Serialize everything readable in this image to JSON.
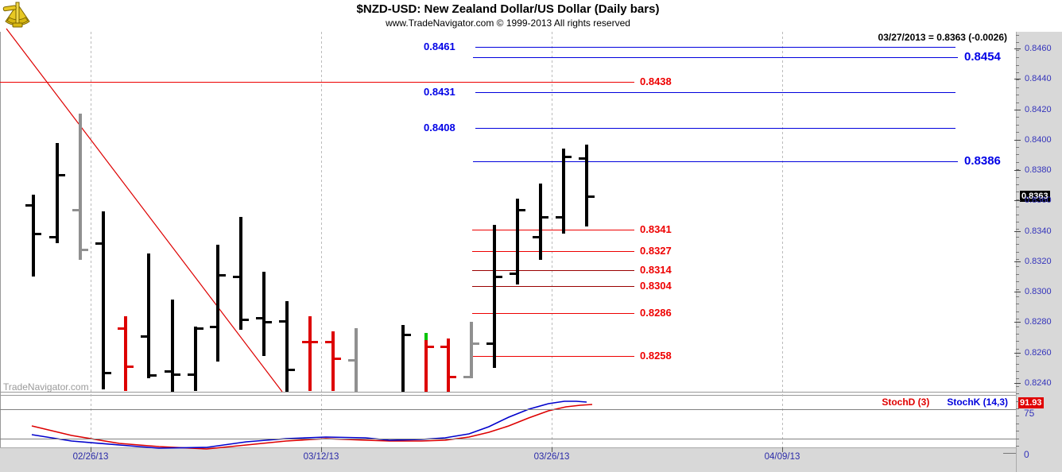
{
  "header": {
    "title": "$NZD-USD:  New Zealand Dollar/US Dollar  (Daily bars)",
    "subtitle": "www.TradeNavigator.com © 1999-2013 All rights reserved",
    "quote": "03/27/2013 = 0.8363 (-0.0026)",
    "watermark": "TradeNavigator.com"
  },
  "logo": {
    "name": "trade-navigator-sextant-logo",
    "color": "#d8b812"
  },
  "price_badge": "0.8363",
  "stoch_badge": "91.93",
  "stoch_labels": {
    "d": "StochD (3)",
    "k": "StochK (14,3)",
    "level75": "75",
    "level0": "0"
  },
  "colors": {
    "blue_line": "#0000dd",
    "red_line": "#ee0000",
    "dark_red_line": "#9a0000",
    "black_bar": "#000000",
    "red_bar": "#dd0000",
    "gray_bar": "#909090",
    "green_cap": "#00c400",
    "axis_text": "#3434bb",
    "stoch_k": "#0000cc",
    "stoch_d": "#dd0000"
  },
  "chart_data": {
    "type": "ohlc",
    "title": "$NZD-USD:  New Zealand Dollar/US Dollar  (Daily bars)",
    "price_axis": {
      "min": 0.824,
      "max": 0.846,
      "tick_step": 0.002,
      "minor_step": 0.0005,
      "labels": [
        "0.8460",
        "0.8440",
        "0.8420",
        "0.8400",
        "0.8380",
        "0.8360",
        "0.8340",
        "0.8320",
        "0.8300",
        "0.8280",
        "0.8260",
        "0.8240"
      ],
      "last_price": 0.8363
    },
    "x_axis": {
      "dates": [
        {
          "label": "02/26/13",
          "x": 114
        },
        {
          "label": "03/12/13",
          "x": 404
        },
        {
          "label": "03/26/13",
          "x": 694
        },
        {
          "label": "04/09/13",
          "x": 984
        }
      ]
    },
    "bars": [
      {
        "x": 42,
        "o": 0.8357,
        "h": 0.8364,
        "l": 0.831,
        "c": 0.8338,
        "color": "black"
      },
      {
        "x": 72,
        "o": 0.8336,
        "h": 0.8398,
        "l": 0.8332,
        "c": 0.8377,
        "color": "black"
      },
      {
        "x": 101,
        "o": 0.8354,
        "h": 0.8417,
        "l": 0.8321,
        "c": 0.8328,
        "color": "gray"
      },
      {
        "x": 130,
        "o": 0.8332,
        "h": 0.8353,
        "l": 0.8236,
        "c": 0.8247,
        "color": "black"
      },
      {
        "x": 158,
        "o": 0.8276,
        "h": 0.8284,
        "l": 0.8235,
        "c": 0.8251,
        "color": "red"
      },
      {
        "x": 187,
        "o": 0.8271,
        "h": 0.8325,
        "l": 0.8243,
        "c": 0.8245,
        "color": "black"
      },
      {
        "x": 217,
        "o": 0.8248,
        "h": 0.8295,
        "l": 0.8234,
        "c": 0.8246,
        "color": "black"
      },
      {
        "x": 246,
        "o": 0.8246,
        "h": 0.8277,
        "l": 0.8235,
        "c": 0.8276,
        "color": "black"
      },
      {
        "x": 274,
        "o": 0.8277,
        "h": 0.8331,
        "l": 0.8254,
        "c": 0.8311,
        "color": "black"
      },
      {
        "x": 303,
        "o": 0.831,
        "h": 0.8349,
        "l": 0.8275,
        "c": 0.8282,
        "color": "black"
      },
      {
        "x": 332,
        "o": 0.8283,
        "h": 0.8313,
        "l": 0.8258,
        "c": 0.828,
        "color": "black"
      },
      {
        "x": 361,
        "o": 0.8281,
        "h": 0.8294,
        "l": 0.8234,
        "c": 0.8249,
        "color": "black"
      },
      {
        "x": 390,
        "o": 0.8267,
        "h": 0.8284,
        "l": 0.8235,
        "c": 0.8267,
        "color": "red"
      },
      {
        "x": 419,
        "o": 0.8267,
        "h": 0.8274,
        "l": 0.8235,
        "c": 0.8256,
        "color": "red"
      },
      {
        "x": 448,
        "o": 0.8255,
        "h": 0.8276,
        "l": 0.8234,
        "c": null,
        "color": "gray"
      },
      {
        "x": 507,
        "o": null,
        "h": 0.8278,
        "l": 0.8234,
        "c": 0.8272,
        "color": "black"
      },
      {
        "x": 536,
        "o": null,
        "h": 0.8273,
        "l": 0.8234,
        "c": 0.8264,
        "color": "red",
        "top_segment": {
          "to": 0.8268,
          "color": "green"
        }
      },
      {
        "x": 564,
        "o": 0.8264,
        "h": 0.8269,
        "l": 0.8234,
        "c": 0.8244,
        "color": "red"
      },
      {
        "x": 593,
        "o": 0.8244,
        "h": 0.828,
        "l": 0.8243,
        "c": 0.8266,
        "color": "gray"
      },
      {
        "x": 622,
        "o": 0.8266,
        "h": 0.8344,
        "l": 0.825,
        "c": 0.831,
        "color": "black"
      },
      {
        "x": 651,
        "o": 0.8312,
        "h": 0.8361,
        "l": 0.8305,
        "c": 0.8354,
        "color": "black"
      },
      {
        "x": 680,
        "o": 0.8336,
        "h": 0.8371,
        "l": 0.8321,
        "c": 0.8349,
        "color": "black"
      },
      {
        "x": 709,
        "o": 0.8349,
        "h": 0.8394,
        "l": 0.8338,
        "c": 0.8389,
        "color": "black"
      },
      {
        "x": 738,
        "o": 0.8388,
        "h": 0.8397,
        "l": 0.8343,
        "c": 0.8363,
        "color": "black"
      }
    ],
    "levels": [
      {
        "label": "0.8461",
        "price": 0.8461,
        "style": "blue",
        "x1": 598,
        "x2": 1202,
        "label_side": "left"
      },
      {
        "label": "0.8454",
        "price": 0.8454,
        "style": "blue",
        "x1": 595,
        "x2": 1205,
        "label_side": "right_big"
      },
      {
        "label": "0.8438",
        "price": 0.8438,
        "style": "red",
        "x1": 0,
        "x2": 798,
        "label_side": "line_end"
      },
      {
        "label": "0.8431",
        "price": 0.8431,
        "style": "blue",
        "x1": 598,
        "x2": 1202,
        "label_side": "left"
      },
      {
        "label": "0.8408",
        "price": 0.8408,
        "style": "blue",
        "x1": 598,
        "x2": 1202,
        "label_side": "left"
      },
      {
        "label": "0.8386",
        "price": 0.8386,
        "style": "blue",
        "x1": 595,
        "x2": 1205,
        "label_side": "right_big"
      },
      {
        "label": "0.8341",
        "price": 0.8341,
        "style": "red",
        "x1": 594,
        "x2": 798,
        "label_side": "line_end"
      },
      {
        "label": "0.8327",
        "price": 0.8327,
        "style": "red",
        "x1": 594,
        "x2": 798,
        "label_side": "line_end"
      },
      {
        "label": "0.8314",
        "price": 0.8314,
        "style": "dark_red",
        "x1": 594,
        "x2": 798,
        "label_side": "line_end"
      },
      {
        "label": "0.8304",
        "price": 0.8304,
        "style": "dark_red",
        "x1": 594,
        "x2": 798,
        "label_side": "line_end"
      },
      {
        "label": "0.8286",
        "price": 0.8286,
        "style": "red",
        "x1": 594,
        "x2": 798,
        "label_side": "line_end"
      },
      {
        "label": "0.8258",
        "price": 0.8258,
        "style": "red",
        "x1": 594,
        "x2": 798,
        "label_side": "line_end"
      }
    ],
    "trendline": {
      "x1": 8,
      "p1": 0.8473,
      "x2": 355,
      "p2": 0.8234
    },
    "stochastic": {
      "levels_drawn": [
        75,
        25
      ],
      "label_75": "75",
      "label_0": "0",
      "last_value_badge": "91.93",
      "series": [
        {
          "name": "StochD (3)",
          "color_key": "stoch_d",
          "points": [
            [
              40,
              47
            ],
            [
              90,
              30
            ],
            [
              150,
              16
            ],
            [
              200,
              11
            ],
            [
              260,
              7
            ],
            [
              310,
              14
            ],
            [
              360,
              21
            ],
            [
              410,
              25
            ],
            [
              460,
              22
            ],
            [
              490,
              21
            ],
            [
              530,
              21
            ],
            [
              560,
              22
            ],
            [
              590,
              27
            ],
            [
              615,
              36
            ],
            [
              640,
              47
            ],
            [
              665,
              60
            ],
            [
              690,
              72
            ],
            [
              712,
              79
            ],
            [
              730,
              82
            ],
            [
              745,
              83
            ]
          ]
        },
        {
          "name": "StochK (14,3)",
          "color_key": "stoch_k",
          "points": [
            [
              40,
              31
            ],
            [
              90,
              21
            ],
            [
              150,
              14
            ],
            [
              200,
              8
            ],
            [
              260,
              10
            ],
            [
              310,
              19
            ],
            [
              360,
              25
            ],
            [
              410,
              27
            ],
            [
              460,
              26
            ],
            [
              490,
              22
            ],
            [
              530,
              23
            ],
            [
              560,
              26
            ],
            [
              590,
              33
            ],
            [
              615,
              45
            ],
            [
              640,
              62
            ],
            [
              665,
              76
            ],
            [
              690,
              85
            ],
            [
              710,
              89
            ],
            [
              725,
              89.5
            ],
            [
              738,
              88
            ]
          ]
        }
      ]
    }
  }
}
